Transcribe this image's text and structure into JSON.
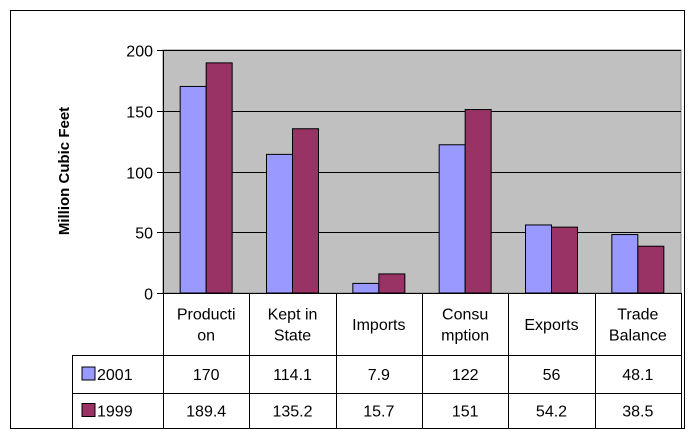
{
  "chart_data": {
    "type": "bar",
    "title": "",
    "xlabel": "",
    "ylabel": "Million Cubic Feet",
    "ylim": [
      0,
      200
    ],
    "yticks": [
      "0",
      "50",
      "100",
      "150",
      "200"
    ],
    "categories": [
      [
        "Producti",
        "on"
      ],
      [
        "Kept in",
        "State"
      ],
      [
        "Imports"
      ],
      [
        "Consu",
        "mption"
      ],
      [
        "Exports"
      ],
      [
        "Trade",
        "Balance"
      ]
    ],
    "series": [
      {
        "name": "2001",
        "color": "#9999ff",
        "values": [
          170,
          114.1,
          7.9,
          122,
          56,
          48.1
        ],
        "labels": [
          "170",
          "114.1",
          "7.9",
          "122",
          "56",
          "48.1"
        ]
      },
      {
        "name": "1999",
        "color": "#993366",
        "values": [
          189.4,
          135.2,
          15.7,
          151,
          54.2,
          38.5
        ],
        "labels": [
          "189.4",
          "135.2",
          "15.7",
          "151",
          "54.2",
          "38.5"
        ]
      }
    ],
    "grid": true,
    "plot_background": "#c0c0c0",
    "legend": "data-table"
  }
}
